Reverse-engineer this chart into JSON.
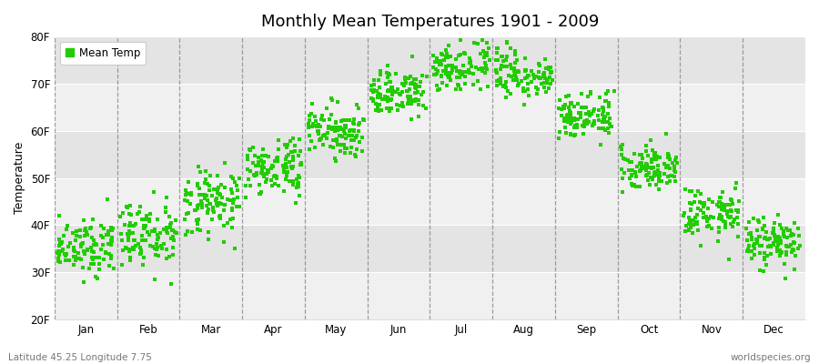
{
  "title": "Monthly Mean Temperatures 1901 - 2009",
  "ylabel": "Temperature",
  "xlabel_labels": [
    "Jan",
    "Feb",
    "Mar",
    "Apr",
    "May",
    "Jun",
    "Jul",
    "Aug",
    "Sep",
    "Oct",
    "Nov",
    "Dec"
  ],
  "ytick_labels": [
    "20F",
    "30F",
    "40F",
    "50F",
    "60F",
    "70F",
    "80F"
  ],
  "ytick_values": [
    20,
    30,
    40,
    50,
    60,
    70,
    80
  ],
  "ylim": [
    20,
    80
  ],
  "background_color": "#ffffff",
  "plot_bg_light": "#f0f0f0",
  "plot_bg_dark": "#e4e4e4",
  "dot_color": "#22cc00",
  "dot_size": 7,
  "legend_label": "Mean Temp",
  "footer_left": "Latitude 45.25 Longitude 7.75",
  "footer_right": "worldspecies.org",
  "mean_temps_f": [
    35.5,
    37.5,
    44.5,
    52.0,
    60.0,
    68.0,
    73.5,
    72.0,
    63.5,
    52.5,
    42.5,
    36.5
  ],
  "std_temps_f": [
    3.0,
    3.8,
    3.5,
    3.0,
    2.5,
    2.5,
    2.5,
    2.5,
    2.5,
    2.5,
    2.8,
    2.8
  ],
  "n_years": 109,
  "random_seed": 12
}
